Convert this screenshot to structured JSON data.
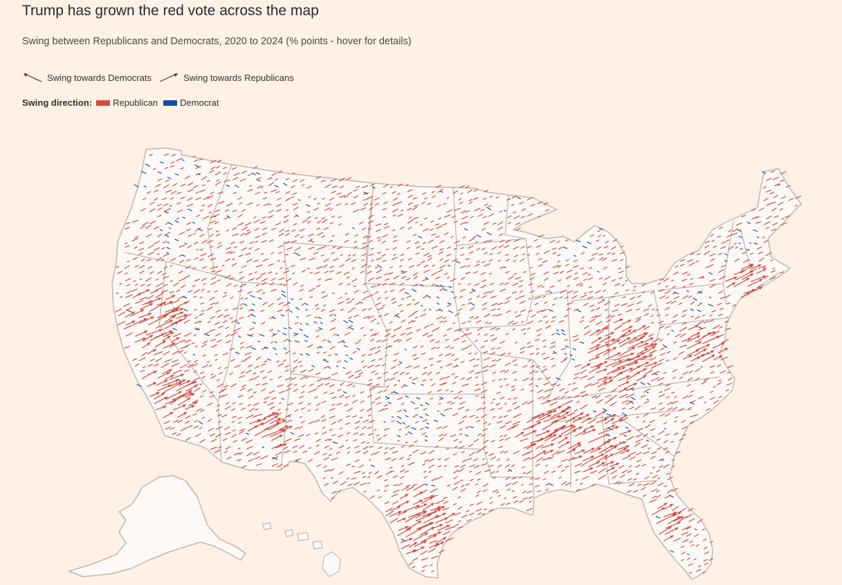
{
  "header": {
    "title": "Trump has grown the red vote across the map",
    "subtitle": "Swing between Republicans and Democrats, 2020 to 2024 (% points - hover for details)"
  },
  "key": {
    "dem_arrow_label": "Swing towards Democrats",
    "rep_arrow_label": "Swing towards Republicans"
  },
  "legend": {
    "title": "Swing direction:",
    "items": [
      {
        "label": "Republican",
        "color": "#D1493F"
      },
      {
        "label": "Democrat",
        "color": "#0F4FA8"
      }
    ]
  },
  "map": {
    "land_color": "#FDF9F6",
    "border_color": "#BDB6B0",
    "background": "#FFF1E5",
    "arrow_colors": {
      "republican": "#D1493F",
      "democrat": "#0F4FA8"
    }
  }
}
